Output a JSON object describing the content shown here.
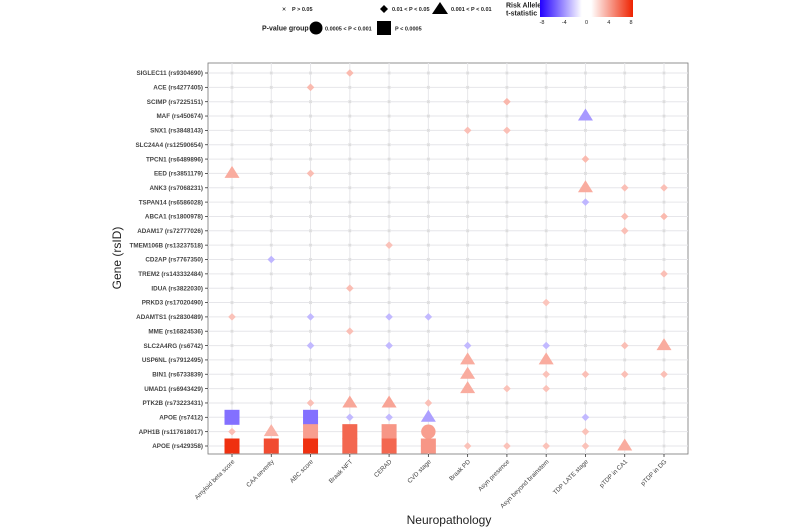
{
  "chart_data": {
    "type": "scatter",
    "subtype": "dot-matrix",
    "xlabel": "Neuropathology",
    "ylabel": "Gene (rsID)",
    "grid": true,
    "categories_x": [
      "Amyloid beta score",
      "CAA severity",
      "ABC score",
      "Braak NFT",
      "CERAD",
      "CVD stage",
      "Braak PD",
      "Asyn presence",
      "Asyn beyond brainstem",
      "TDP LATE stage",
      "pTDP in CA1",
      "pTDP in DG"
    ],
    "categories_y": [
      "SIGLEC11 (rs9304690)",
      "ACE (rs4277405)",
      "SCIMP (rs7225151)",
      "MAF (rs450674)",
      "SNX1 (rs3848143)",
      "SLC24A4 (rs12590654)",
      "TPCN1 (rs6489896)",
      "EED (rs3851179)",
      "ANK3 (rs7068231)",
      "TSPAN14 (rs6586028)",
      "ABCA1 (rs1800978)",
      "ADAM17 (rs72777026)",
      "TMEM106B (rs13237518)",
      "CD2AP (rs7767350)",
      "TREM2 (rs143332484)",
      "IDUA (rs3822030)",
      "PRKD3 (rs17020490)",
      "ADAMTS1 (rs2830489)",
      "MME (rs16824536)",
      "SLC2A4RG (rs6742)",
      "USP6NL (rs7912495)",
      "BIN1 (rs6733839)",
      "UMAD1 (rs6943429)",
      "PTK2B (rs73223431)",
      "APOE (rs7412)",
      "APH1B (rs117618017)",
      "APOE (rs429358)"
    ],
    "legend": {
      "shape_title": "P-value group",
      "shape_items": [
        {
          "shape": "x",
          "label": "P > 0.05"
        },
        {
          "shape": "diamond",
          "label": "0.01 < P < 0.05"
        },
        {
          "shape": "triangle",
          "label": "0.001 < P < 0.01"
        },
        {
          "shape": "circle",
          "label": "0.0005 < P < 0.001"
        },
        {
          "shape": "square",
          "label": "P < 0.0005"
        }
      ],
      "color_title_line1": "Risk Allele",
      "color_title_line2": "t-statistic",
      "color_ticks": [
        "-8",
        "-4",
        "0",
        "4",
        "8"
      ],
      "color_range": [
        -8,
        8
      ],
      "color_low": "#2200ff",
      "color_mid": "#ffffff",
      "color_high": "#ee2200",
      "placement": "top"
    },
    "points": [
      {
        "y": 0,
        "x": 3,
        "shape": "diamond",
        "t": 2.5
      },
      {
        "y": 1,
        "x": 2,
        "shape": "diamond",
        "t": 2.5
      },
      {
        "y": 2,
        "x": 7,
        "shape": "diamond",
        "t": 2.6
      },
      {
        "y": 3,
        "x": 9,
        "shape": "triangle",
        "t": -3.2
      },
      {
        "y": 4,
        "x": 6,
        "shape": "diamond",
        "t": 2.3
      },
      {
        "y": 4,
        "x": 7,
        "shape": "diamond",
        "t": 2.3
      },
      {
        "y": 6,
        "x": 9,
        "shape": "diamond",
        "t": 2.5
      },
      {
        "y": 7,
        "x": 0,
        "shape": "triangle",
        "t": 3.0
      },
      {
        "y": 7,
        "x": 2,
        "shape": "diamond",
        "t": 2.4
      },
      {
        "y": 8,
        "x": 9,
        "shape": "triangle",
        "t": 3.0
      },
      {
        "y": 8,
        "x": 10,
        "shape": "diamond",
        "t": 2.3
      },
      {
        "y": 8,
        "x": 11,
        "shape": "diamond",
        "t": 2.3
      },
      {
        "y": 9,
        "x": 9,
        "shape": "diamond",
        "t": -2.3
      },
      {
        "y": 10,
        "x": 10,
        "shape": "diamond",
        "t": 2.4
      },
      {
        "y": 10,
        "x": 11,
        "shape": "diamond",
        "t": 2.5
      },
      {
        "y": 11,
        "x": 10,
        "shape": "diamond",
        "t": 2.3
      },
      {
        "y": 12,
        "x": 4,
        "shape": "diamond",
        "t": 2.2
      },
      {
        "y": 13,
        "x": 1,
        "shape": "diamond",
        "t": -2.3
      },
      {
        "y": 14,
        "x": 11,
        "shape": "diamond",
        "t": 2.3
      },
      {
        "y": 15,
        "x": 3,
        "shape": "diamond",
        "t": 2.4
      },
      {
        "y": 16,
        "x": 8,
        "shape": "diamond",
        "t": 2.1
      },
      {
        "y": 17,
        "x": 0,
        "shape": "diamond",
        "t": 2.2
      },
      {
        "y": 17,
        "x": 2,
        "shape": "diamond",
        "t": -2.2
      },
      {
        "y": 17,
        "x": 4,
        "shape": "diamond",
        "t": -2.2
      },
      {
        "y": 17,
        "x": 5,
        "shape": "diamond",
        "t": -2.2
      },
      {
        "y": 18,
        "x": 3,
        "shape": "diamond",
        "t": 2.3
      },
      {
        "y": 19,
        "x": 2,
        "shape": "diamond",
        "t": -2.2
      },
      {
        "y": 19,
        "x": 4,
        "shape": "diamond",
        "t": -2.2
      },
      {
        "y": 19,
        "x": 6,
        "shape": "diamond",
        "t": -2.2
      },
      {
        "y": 19,
        "x": 8,
        "shape": "diamond",
        "t": -2.2
      },
      {
        "y": 19,
        "x": 10,
        "shape": "diamond",
        "t": 2.3
      },
      {
        "y": 19,
        "x": 11,
        "shape": "triangle",
        "t": 3.0
      },
      {
        "y": 20,
        "x": 6,
        "shape": "triangle",
        "t": 3.0
      },
      {
        "y": 20,
        "x": 8,
        "shape": "triangle",
        "t": 3.0
      },
      {
        "y": 21,
        "x": 6,
        "shape": "triangle",
        "t": 3.0
      },
      {
        "y": 21,
        "x": 8,
        "shape": "diamond",
        "t": 2.2
      },
      {
        "y": 21,
        "x": 9,
        "shape": "diamond",
        "t": 2.3
      },
      {
        "y": 21,
        "x": 10,
        "shape": "diamond",
        "t": 2.3
      },
      {
        "y": 21,
        "x": 11,
        "shape": "diamond",
        "t": 2.3
      },
      {
        "y": 22,
        "x": 6,
        "shape": "triangle",
        "t": 3.0
      },
      {
        "y": 22,
        "x": 7,
        "shape": "diamond",
        "t": 2.2
      },
      {
        "y": 22,
        "x": 8,
        "shape": "diamond",
        "t": 2.2
      },
      {
        "y": 23,
        "x": 2,
        "shape": "diamond",
        "t": 2.3
      },
      {
        "y": 23,
        "x": 3,
        "shape": "triangle",
        "t": 3.2
      },
      {
        "y": 23,
        "x": 4,
        "shape": "triangle",
        "t": 3.3
      },
      {
        "y": 23,
        "x": 5,
        "shape": "diamond",
        "t": 2.3
      },
      {
        "y": 24,
        "x": 0,
        "shape": "square",
        "t": -4.5
      },
      {
        "y": 24,
        "x": 2,
        "shape": "square",
        "t": -4.5
      },
      {
        "y": 24,
        "x": 3,
        "shape": "diamond",
        "t": -2.2
      },
      {
        "y": 24,
        "x": 4,
        "shape": "diamond",
        "t": -2.2
      },
      {
        "y": 24,
        "x": 5,
        "shape": "triangle",
        "t": -3.0
      },
      {
        "y": 24,
        "x": 9,
        "shape": "diamond",
        "t": -2.2
      },
      {
        "y": 25,
        "x": 0,
        "shape": "diamond",
        "t": 2.3
      },
      {
        "y": 25,
        "x": 1,
        "shape": "triangle",
        "t": 2.8
      },
      {
        "y": 25,
        "x": 2,
        "shape": "square",
        "t": 3.5
      },
      {
        "y": 25,
        "x": 3,
        "shape": "square",
        "t": 5.5
      },
      {
        "y": 25,
        "x": 4,
        "shape": "square",
        "t": 3.8
      },
      {
        "y": 25,
        "x": 5,
        "shape": "circle",
        "t": 3.5
      },
      {
        "y": 25,
        "x": 9,
        "shape": "diamond",
        "t": 2.2
      },
      {
        "y": 26,
        "x": 0,
        "shape": "square",
        "t": 7.5
      },
      {
        "y": 26,
        "x": 1,
        "shape": "square",
        "t": 6.5
      },
      {
        "y": 26,
        "x": 2,
        "shape": "square",
        "t": 7.5
      },
      {
        "y": 26,
        "x": 3,
        "shape": "square",
        "t": 5.5
      },
      {
        "y": 26,
        "x": 4,
        "shape": "square",
        "t": 5.5
      },
      {
        "y": 26,
        "x": 5,
        "shape": "square",
        "t": 3.8
      },
      {
        "y": 26,
        "x": 6,
        "shape": "diamond",
        "t": 2.2
      },
      {
        "y": 26,
        "x": 7,
        "shape": "diamond",
        "t": 2.2
      },
      {
        "y": 26,
        "x": 8,
        "shape": "diamond",
        "t": 2.2
      },
      {
        "y": 26,
        "x": 9,
        "shape": "diamond",
        "t": 2.2
      },
      {
        "y": 26,
        "x": 10,
        "shape": "triangle",
        "t": 3.0
      }
    ]
  }
}
